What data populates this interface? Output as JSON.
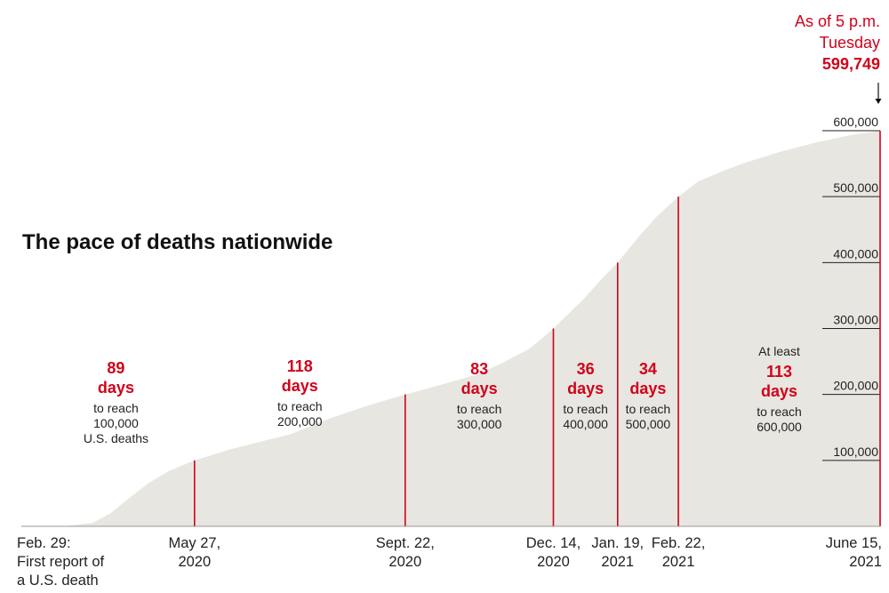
{
  "chart_data": {
    "type": "area",
    "title": "The pace of deaths nationwide",
    "ylim": [
      0,
      600000
    ],
    "y_ticks": [
      "100,000",
      "200,000",
      "300,000",
      "400,000",
      "500,000",
      "600,000"
    ],
    "x_range": [
      "2020-02-20",
      "2021-06-15"
    ],
    "series": [
      {
        "values": [
          {
            "date": "2020-02-20",
            "deaths": 0
          },
          {
            "date": "2020-02-29",
            "deaths": 0
          },
          {
            "date": "2020-03-15",
            "deaths": 200
          },
          {
            "date": "2020-03-31",
            "deaths": 5000
          },
          {
            "date": "2020-04-10",
            "deaths": 20000
          },
          {
            "date": "2020-04-20",
            "deaths": 42000
          },
          {
            "date": "2020-05-01",
            "deaths": 65000
          },
          {
            "date": "2020-05-12",
            "deaths": 83000
          },
          {
            "date": "2020-05-27",
            "deaths": 100000
          },
          {
            "date": "2020-06-15",
            "deaths": 116000
          },
          {
            "date": "2020-07-01",
            "deaths": 127000
          },
          {
            "date": "2020-07-20",
            "deaths": 140000
          },
          {
            "date": "2020-08-10",
            "deaths": 163000
          },
          {
            "date": "2020-09-01",
            "deaths": 183000
          },
          {
            "date": "2020-09-22",
            "deaths": 200000
          },
          {
            "date": "2020-10-15",
            "deaths": 217000
          },
          {
            "date": "2020-11-01",
            "deaths": 230000
          },
          {
            "date": "2020-11-15",
            "deaths": 247000
          },
          {
            "date": "2020-12-01",
            "deaths": 270000
          },
          {
            "date": "2020-12-14",
            "deaths": 300000
          },
          {
            "date": "2020-12-31",
            "deaths": 345000
          },
          {
            "date": "2021-01-10",
            "deaths": 375000
          },
          {
            "date": "2021-01-19",
            "deaths": 400000
          },
          {
            "date": "2021-01-31",
            "deaths": 440000
          },
          {
            "date": "2021-02-10",
            "deaths": 470000
          },
          {
            "date": "2021-02-22",
            "deaths": 500000
          },
          {
            "date": "2021-03-05",
            "deaths": 523000
          },
          {
            "date": "2021-03-20",
            "deaths": 540000
          },
          {
            "date": "2021-04-01",
            "deaths": 552000
          },
          {
            "date": "2021-04-20",
            "deaths": 568000
          },
          {
            "date": "2021-05-10",
            "deaths": 582000
          },
          {
            "date": "2021-05-31",
            "deaths": 594000
          },
          {
            "date": "2021-06-15",
            "deaths": 599749
          }
        ]
      }
    ],
    "milestones": [
      {
        "date": "2020-05-27",
        "deaths": 100000,
        "label_lines": [
          "May 27,",
          "2020"
        ]
      },
      {
        "date": "2020-09-22",
        "deaths": 200000,
        "label_lines": [
          "Sept. 22,",
          "2020"
        ]
      },
      {
        "date": "2020-12-14",
        "deaths": 300000,
        "label_lines": [
          "Dec. 14,",
          "2020"
        ]
      },
      {
        "date": "2021-01-19",
        "deaths": 400000,
        "label_lines": [
          "Jan. 19,",
          "2021"
        ]
      },
      {
        "date": "2021-02-22",
        "deaths": 500000,
        "label_lines": [
          "Feb. 22,",
          "2021"
        ]
      },
      {
        "date": "2021-06-15",
        "deaths": 599749,
        "label_lines": [
          "June 15,",
          "2021"
        ]
      }
    ],
    "start_label_lines": [
      "Feb. 29:",
      "First report of",
      "a U.S. death"
    ],
    "intervals": [
      {
        "pre": "",
        "days": "89",
        "unit": "days",
        "lines": [
          "to reach",
          "100,000",
          "U.S. deaths"
        ]
      },
      {
        "pre": "",
        "days": "118",
        "unit": "days",
        "lines": [
          "to reach",
          "200,000"
        ]
      },
      {
        "pre": "",
        "days": "83",
        "unit": "days",
        "lines": [
          "to reach",
          "300,000"
        ]
      },
      {
        "pre": "",
        "days": "36",
        "unit": "days",
        "lines": [
          "to reach",
          "400,000"
        ]
      },
      {
        "pre": "",
        "days": "34",
        "unit": "days",
        "lines": [
          "to reach",
          "500,000"
        ]
      },
      {
        "pre": "At least",
        "days": "113",
        "unit": "days",
        "lines": [
          "to reach",
          "600,000"
        ]
      }
    ],
    "latest": {
      "lines": [
        "As of 5 p.m.",
        "Tuesday"
      ],
      "value": "599,749"
    },
    "colors": {
      "area": "#e8e6e0",
      "accent": "#d0021b",
      "text": "#222222",
      "baseline": "#999999"
    }
  }
}
